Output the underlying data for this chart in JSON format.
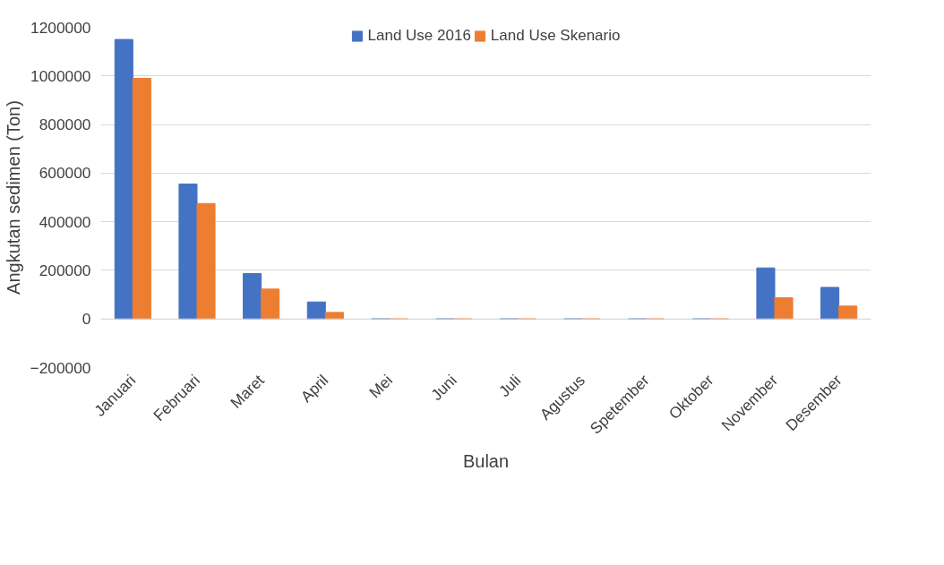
{
  "chart_data": {
    "type": "bar",
    "xlabel": "Bulan",
    "ylabel": "Angkutan sedimen (Ton)",
    "categories": [
      "Januari",
      "Februari",
      "Maret",
      "April",
      "Mei",
      "Juni",
      "Juli",
      "Agustus",
      "Spetember",
      "Oktober",
      "November",
      "Desember"
    ],
    "series": [
      {
        "name": "Land Use 2016",
        "color": "#4472c4",
        "values": [
          1150000,
          555000,
          187000,
          70000,
          0,
          0,
          0,
          0,
          0,
          0,
          210000,
          130000
        ]
      },
      {
        "name": "Land Use Skenario",
        "color": "#ed7d31",
        "values": [
          990000,
          475000,
          123000,
          27000,
          0,
          0,
          0,
          0,
          0,
          0,
          87000,
          53000
        ]
      }
    ],
    "ylim": [
      -200000,
      1200000
    ],
    "yticks": [
      -200000,
      0,
      200000,
      400000,
      600000,
      800000,
      1000000,
      1200000
    ],
    "grid": "y",
    "legend": "top"
  }
}
